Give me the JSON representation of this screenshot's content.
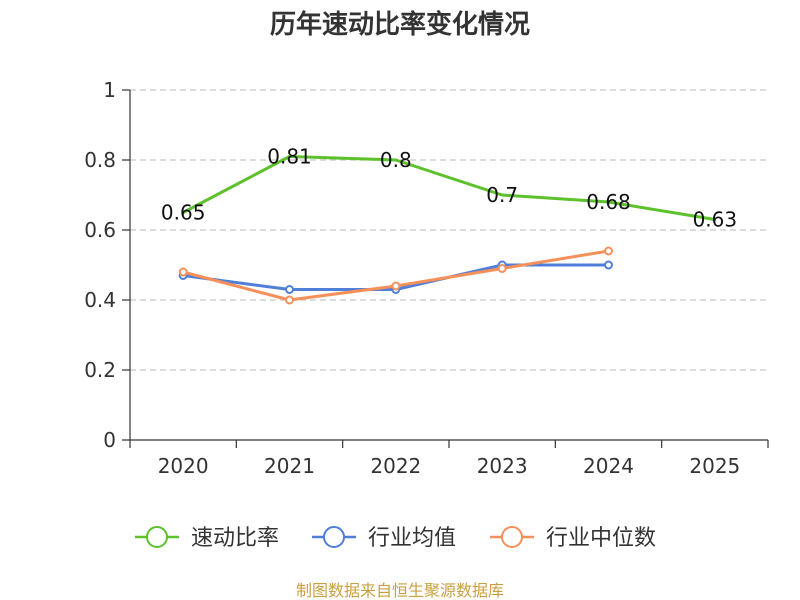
{
  "chart_data": {
    "type": "line",
    "title": "历年速动比率变化情况",
    "x": [
      "2020",
      "2021",
      "2022",
      "2023",
      "2024",
      "2025"
    ],
    "ylim": [
      0,
      1
    ],
    "y_ticks": [
      "0",
      "0.2",
      "0.4",
      "0.6",
      "0.8",
      "1"
    ],
    "y_tick_values": [
      0,
      0.2,
      0.4,
      0.6,
      0.8,
      1
    ],
    "grid": true,
    "legend_position": "bottom",
    "series": [
      {
        "name": "速动比率",
        "color": "#5cc12a",
        "values": [
          0.65,
          0.81,
          0.8,
          0.7,
          0.68,
          0.63
        ],
        "labels": [
          "0.65",
          "0.81",
          "0.8",
          "0.7",
          "0.68",
          "0.63"
        ],
        "show_markers": false
      },
      {
        "name": "行业均值",
        "color": "#4f7fd8",
        "values": [
          0.47,
          0.43,
          0.43,
          0.5,
          0.5,
          null
        ],
        "show_markers": true
      },
      {
        "name": "行业中位数",
        "color": "#f5905a",
        "values": [
          0.48,
          0.4,
          0.44,
          0.49,
          0.54,
          null
        ],
        "show_markers": true
      }
    ],
    "source": "制图数据来自恒生聚源数据库"
  }
}
